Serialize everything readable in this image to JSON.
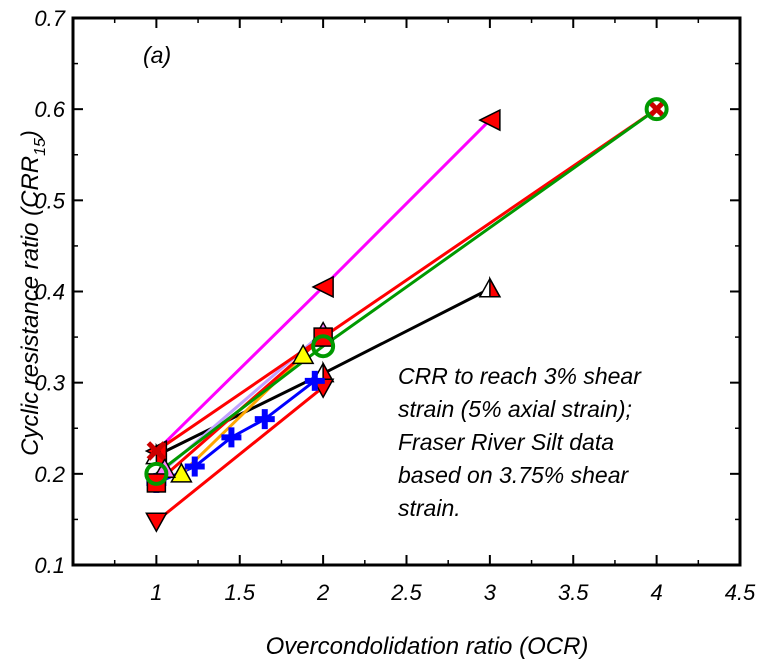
{
  "chart_data": {
    "type": "scatter",
    "panel_label": "(a)",
    "xlabel": "Overcondolidation ratio (OCR)",
    "ylabel": {
      "main": "Cyclic resistance ratio (CRR",
      "sub": "15",
      "close": ")"
    },
    "xlim": [
      0.5,
      4.5
    ],
    "ylim": [
      0.1,
      0.7
    ],
    "xticks": [
      1,
      1.5,
      2,
      2.5,
      3,
      3.5,
      4,
      4.5
    ],
    "xtick_labels": [
      "1",
      "1.5",
      "2",
      "2.5",
      "3",
      "3.5",
      "4",
      "4.5"
    ],
    "yticks": [
      0.1,
      0.2,
      0.3,
      0.4,
      0.5,
      0.6,
      0.7
    ],
    "ytick_labels": [
      "0.1",
      "0.2",
      "0.3",
      "0.4",
      "0.5",
      "0.6",
      "0.7"
    ],
    "annotation": [
      "CRR to reach 3% shear",
      "strain (5% axial strain);",
      "Fraser River Silt data",
      "based on 3.75% shear",
      "strain."
    ],
    "series": [
      {
        "line": "#ff00ff",
        "fill": "#ff0000",
        "marker": "triangle-left",
        "x": [
          1,
          2,
          3
        ],
        "y": [
          0.225,
          0.405,
          0.588
        ]
      },
      {
        "line": "#000000",
        "fill": "#ff0000",
        "marker": "triangle-up-half",
        "x": [
          1,
          2,
          3
        ],
        "y": [
          0.22,
          0.31,
          0.403
        ]
      },
      {
        "line": "#ff0000",
        "fill": "#ff0000",
        "marker": "triangle-down",
        "x": [
          1,
          2
        ],
        "y": [
          0.148,
          0.295
        ]
      },
      {
        "line": "#0000ff",
        "fill": "#0000ff",
        "marker": "plus",
        "x": [
          1,
          1.23,
          1.45,
          1.65,
          1.95
        ],
        "y": [
          0.19,
          0.208,
          0.24,
          0.26,
          0.302
        ]
      },
      {
        "line": "#ffa500",
        "fill": "#ffff00",
        "marker": "triangle-up",
        "x": [
          1.15,
          1.88
        ],
        "y": [
          0.2,
          0.33
        ]
      },
      {
        "line": "#c0a0ff",
        "fill": "#ff80ff",
        "marker": "triangle-up",
        "x": [
          1.05,
          2
        ],
        "y": [
          0.205,
          0.355
        ]
      },
      {
        "line": "#ff0000",
        "fill": "#ff0000",
        "marker": "square",
        "x": [
          1,
          2
        ],
        "y": [
          0.19,
          0.35
        ]
      },
      {
        "line": "#ff0000",
        "fill": "#ff0000",
        "marker": "x",
        "x": [
          1,
          4
        ],
        "y": [
          0.225,
          0.6
        ]
      },
      {
        "line": "#009900",
        "fill": "#009900",
        "marker": "circle-open",
        "x": [
          1,
          2,
          4
        ],
        "y": [
          0.2,
          0.34,
          0.6
        ]
      }
    ]
  }
}
